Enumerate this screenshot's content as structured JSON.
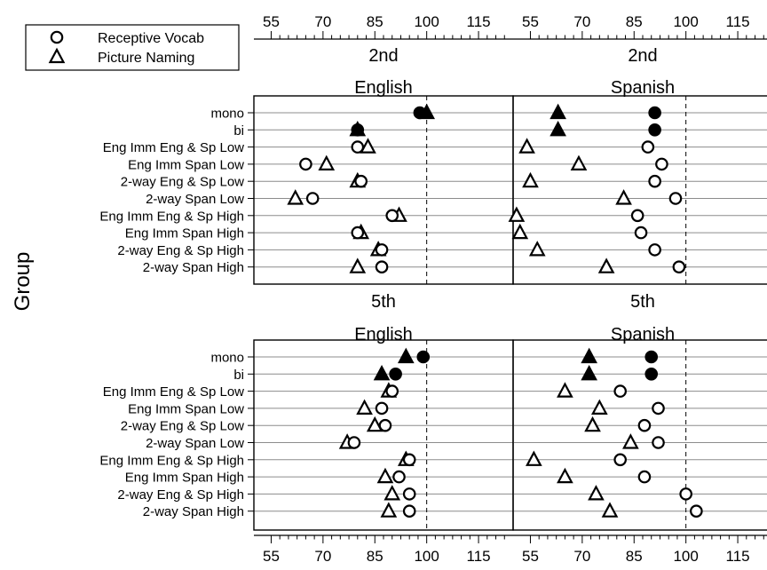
{
  "chart_data": {
    "type": "scatter",
    "ylabel": "Group",
    "xlim": [
      50,
      125
    ],
    "x_ticks": [
      55,
      70,
      85,
      100,
      115
    ],
    "reference_line": 100,
    "groups": [
      "mono",
      "bi",
      "Eng Imm Eng & Sp Low",
      "Eng Imm Span Low",
      "2-way Eng & Sp Low",
      "2-way Span Low",
      "Eng Imm Eng & Sp High",
      "Eng Imm Span High",
      "2-way Eng & Sp High",
      "2-way Span High"
    ],
    "legend": {
      "placement": "top-left",
      "entries": [
        {
          "label": "Receptive Vocab",
          "marker": "circle"
        },
        {
          "label": "Picture Naming",
          "marker": "triangle"
        }
      ]
    },
    "panels": [
      {
        "grade": "2nd",
        "language": "English",
        "receptive_vocab": [
          98,
          80,
          80,
          65,
          81,
          67,
          90,
          80,
          87,
          87
        ],
        "picture_naming": [
          100,
          80,
          83,
          71,
          80,
          62,
          92,
          81,
          86,
          80
        ]
      },
      {
        "grade": "2nd",
        "language": "Spanish",
        "receptive_vocab": [
          91,
          91,
          89,
          93,
          91,
          97,
          86,
          87,
          91,
          98
        ],
        "picture_naming": [
          63,
          63,
          54,
          69,
          55,
          82,
          51,
          52,
          57,
          77
        ]
      },
      {
        "grade": "5th",
        "language": "English",
        "receptive_vocab": [
          99,
          91,
          90,
          87,
          88,
          79,
          95,
          92,
          95,
          95
        ],
        "picture_naming": [
          94,
          87,
          89,
          82,
          85,
          77,
          94,
          88,
          90,
          89
        ]
      },
      {
        "grade": "5th",
        "language": "Spanish",
        "receptive_vocab": [
          90,
          90,
          81,
          92,
          88,
          92,
          81,
          88,
          100,
          103
        ],
        "picture_naming": [
          72,
          72,
          65,
          75,
          73,
          84,
          56,
          65,
          74,
          78
        ]
      }
    ]
  }
}
